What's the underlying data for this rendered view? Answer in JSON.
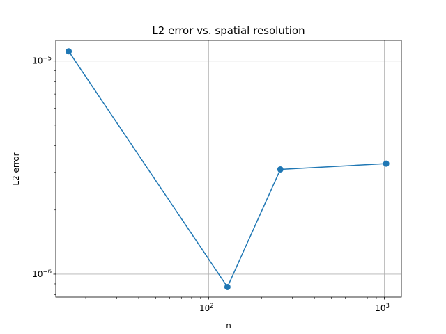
{
  "chart_data": {
    "type": "line",
    "title": "L2 error vs. spatial resolution",
    "xlabel": "n",
    "ylabel": "L2 error",
    "xscale": "log",
    "yscale": "log",
    "xlim": [
      13.5,
      1250
    ],
    "ylim": [
      7.8e-07,
      1.25e-05
    ],
    "grid": true,
    "x_ticks": [
      {
        "value": 100,
        "base": "10",
        "exp": "2"
      },
      {
        "value": 1000,
        "base": "10",
        "exp": "3"
      }
    ],
    "y_ticks": [
      {
        "value": 1e-06,
        "base": "10",
        "exp": "−6"
      },
      {
        "value": 1e-05,
        "base": "10",
        "exp": "−5"
      }
    ],
    "series": [
      {
        "color": "#1f77b4",
        "marker": "circle",
        "x": [
          16,
          128,
          256,
          1024
        ],
        "y": [
          1.11e-05,
          8.7e-07,
          3.1e-06,
          3.3e-06
        ]
      }
    ]
  }
}
